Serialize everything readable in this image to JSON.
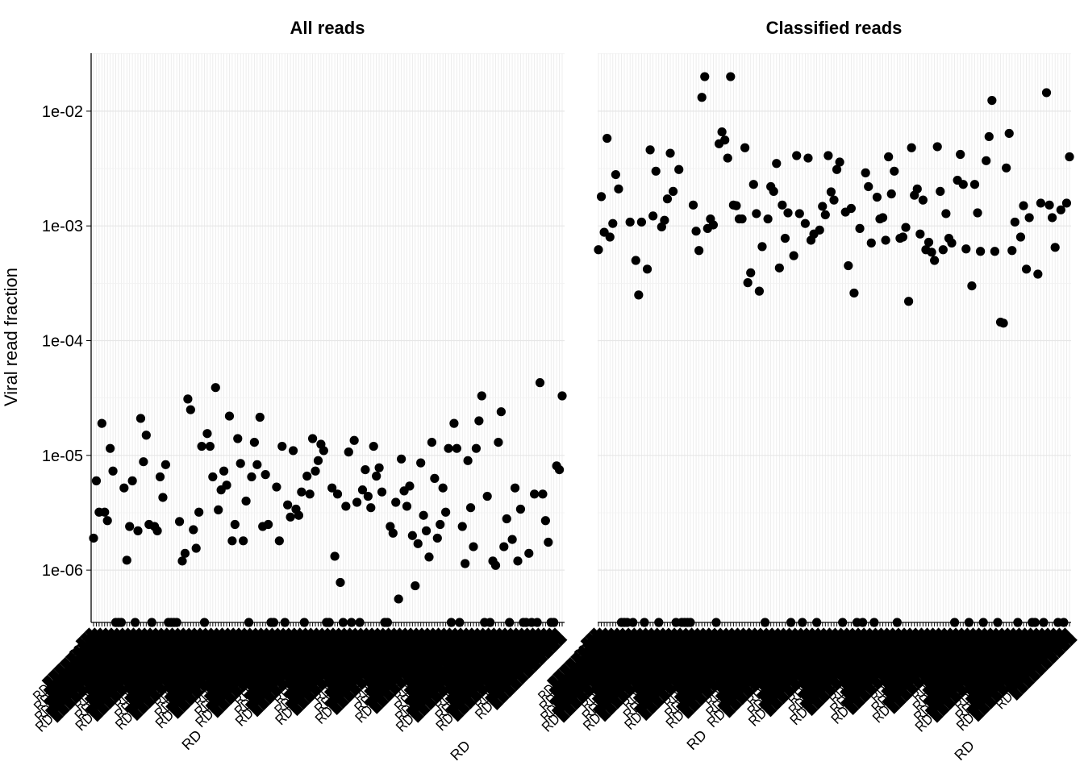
{
  "chart_data": {
    "type": "scatter",
    "ylabel": "Viral read fraction",
    "yscale": "log10",
    "ylim": [
      3.5e-07,
      0.032
    ],
    "yticks": [
      1e-06,
      1e-05,
      0.0001,
      0.001,
      0.01
    ],
    "ytick_labels": [
      "1e-06",
      "1e-05",
      "1e-04",
      "1e-03",
      "1e-02"
    ],
    "grid": true,
    "legend": "none",
    "x_tick_labels_visible": [
      "RD",
      "RD"
    ],
    "panels": [
      {
        "title": "All reads",
        "values": [
          1.9e-06,
          6e-06,
          3.2e-06,
          1.9e-05,
          3.2e-06,
          2.7e-06,
          1.15e-05,
          7.3e-06,
          0,
          0,
          0,
          5.2e-06,
          1.22e-06,
          2.4e-06,
          6e-06,
          0,
          2.2e-06,
          2.1e-05,
          8.8e-06,
          1.5e-05,
          2.5e-06,
          0,
          2.4e-06,
          2.2e-06,
          6.5e-06,
          4.3e-06,
          8.3e-06,
          0,
          0,
          0,
          0,
          2.65e-06,
          1.2e-06,
          1.4e-06,
          3.1e-05,
          2.5e-05,
          2.25e-06,
          1.55e-06,
          3.2e-06,
          1.2e-05,
          0,
          1.55e-05,
          1.2e-05,
          6.5e-06,
          3.9e-05,
          3.35e-06,
          5e-06,
          7.3e-06,
          5.5e-06,
          2.2e-05,
          1.8e-06,
          2.5e-06,
          1.4e-05,
          8.5e-06,
          1.8e-06,
          4e-06,
          0,
          6.5e-06,
          1.3e-05,
          8.3e-06,
          2.15e-05,
          2.4e-06,
          6.8e-06,
          2.5e-06,
          0,
          0,
          5.3e-06,
          1.8e-06,
          1.2e-05,
          0,
          3.7e-06,
          2.9e-06,
          1.1e-05,
          3.4e-06,
          3e-06,
          4.8e-06,
          0,
          6.6e-06,
          4.6e-06,
          1.4e-05,
          7.3e-06,
          9e-06,
          1.25e-05,
          1.1e-05,
          0,
          0,
          5.2e-06,
          1.32e-06,
          4.6e-06,
          7.8e-07,
          0,
          3.6e-06,
          1.07e-05,
          0,
          1.35e-05,
          3.9e-06,
          0,
          5e-06,
          7.5e-06,
          4.4e-06,
          3.5e-06,
          1.2e-05,
          6.6e-06,
          7.8e-06,
          4.8e-06,
          0,
          0,
          2.4e-06,
          2.1e-06,
          3.9e-06,
          5.6e-07,
          9.3e-06,
          4.9e-06,
          3.6e-06,
          5.4e-06,
          2e-06,
          7.3e-07,
          1.7e-06,
          8.6e-06,
          3e-06,
          2.2e-06,
          1.3e-06,
          1.3e-05,
          6.3e-06,
          1.9e-06,
          2.5e-06,
          5.2e-06,
          3.2e-06,
          1.15e-05,
          0,
          1.9e-05,
          1.15e-05,
          0,
          2.4e-06,
          1.14e-06,
          9e-06,
          3.5e-06,
          1.6e-06,
          1.15e-05,
          2e-05,
          3.3e-05,
          0,
          4.4e-06,
          0,
          1.2e-06,
          1.1e-06,
          1.3e-05,
          2.4e-05,
          1.6e-06,
          2.8e-06,
          0,
          1.85e-06,
          5.2e-06,
          1.2e-06,
          3.4e-06,
          0,
          0,
          1.4e-06,
          0,
          4.6e-06,
          0,
          4.3e-05,
          4.6e-06,
          2.7e-06,
          1.75e-06,
          0,
          0,
          8.1e-06,
          7.5e-06,
          3.3e-05
        ]
      },
      {
        "title": "Classified reads",
        "values": [
          0.00062,
          0.0018,
          0.00088,
          0.0058,
          0.0008,
          0.00105,
          0.0028,
          0.0021,
          0,
          0,
          0,
          0.00108,
          0,
          0.0005,
          0.00025,
          0.00108,
          0,
          0.00042,
          0.0046,
          0.00122,
          0.003,
          0,
          0.00098,
          0.00112,
          0.00172,
          0.0043,
          0.002,
          0,
          0.0031,
          0,
          0,
          0,
          0,
          0.00152,
          0.0009,
          0.00061,
          0.0132,
          0.02,
          0.00095,
          0.00115,
          0.00102,
          0,
          0.0052,
          0.0066,
          0.0056,
          0.0039,
          0.02,
          0.00152,
          0.0015,
          0.00115,
          0.00115,
          0.0048,
          0.00032,
          0.00039,
          0.0023,
          0.00128,
          0.00027,
          0.00066,
          0,
          0.00115,
          0.0022,
          0.002,
          0.0035,
          0.00043,
          0.00152,
          0.00078,
          0.0013,
          0,
          0.00055,
          0.0041,
          0.00128,
          0,
          0.00105,
          0.0039,
          0.00075,
          0.00085,
          0,
          0.00092,
          0.00148,
          0.00125,
          0.0041,
          0.00198,
          0.00168,
          0.0031,
          0.0036,
          0,
          0.00132,
          0.00045,
          0.00142,
          0.00026,
          0,
          0.00095,
          0,
          0.0029,
          0.0022,
          0.00071,
          0,
          0.00178,
          0.00115,
          0.00118,
          0.00075,
          0.004,
          0.0019,
          0.003,
          0,
          0.00078,
          0.0008,
          0.00097,
          0.00022,
          0.0048,
          0.00185,
          0.0021,
          0.00085,
          0.00168,
          0.00062,
          0.00072,
          0.00059,
          0.0005,
          0.0049,
          0.002,
          0.00062,
          0.00128,
          0.00078,
          0.00071,
          0,
          0.0025,
          0.0042,
          0.0023,
          0.00063,
          0,
          0.0003,
          0.0023,
          0.0013,
          0.0006,
          0,
          0.0037,
          0.006,
          0.0124,
          0.0006,
          0,
          0.000145,
          0.000142,
          0.0032,
          0.0064,
          0.00061,
          0.00108,
          0,
          0.0008,
          0.0015,
          0.00042,
          0.00118,
          0,
          0,
          0.00038,
          0.00158,
          0,
          0.0145,
          0.00152,
          0.00118,
          0.00065,
          0,
          0.00138,
          0,
          0.00158,
          0.004
        ]
      }
    ]
  }
}
